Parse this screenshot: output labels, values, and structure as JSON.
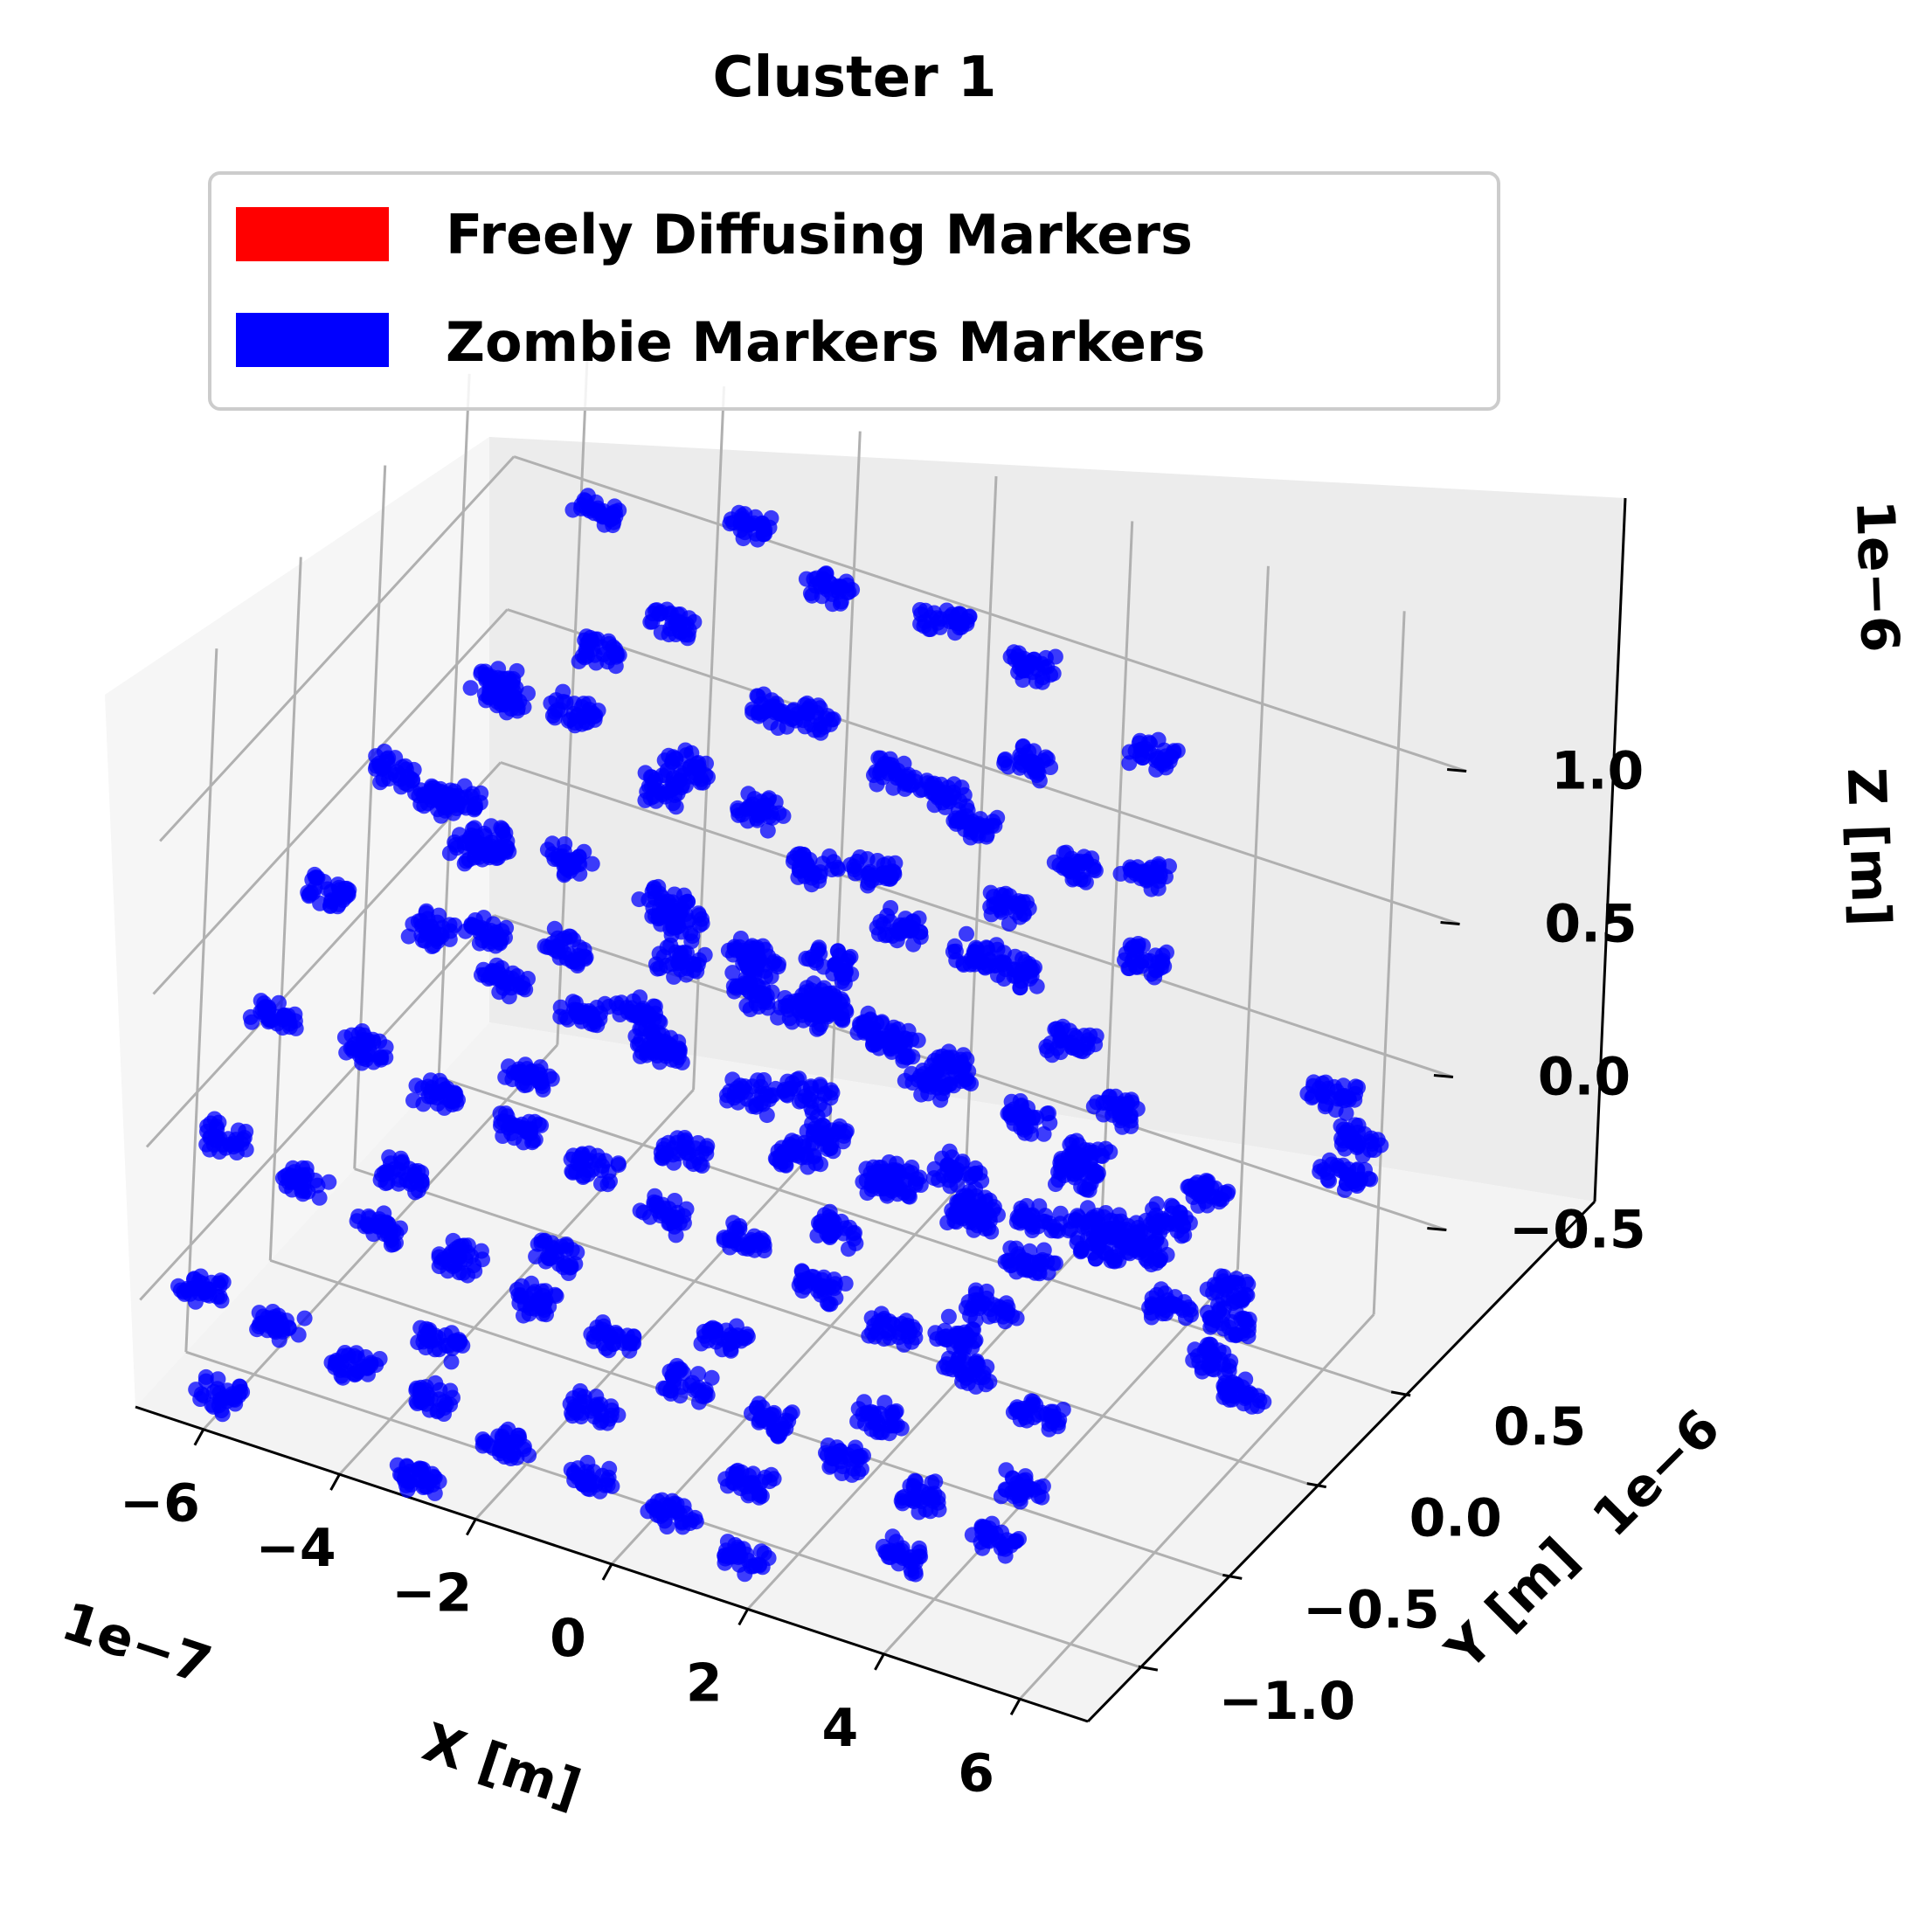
{
  "chart_data": {
    "type": "scatter",
    "projection": "3d",
    "title": "Cluster 1",
    "xlabel": "X [m]",
    "ylabel": "Y [m]",
    "zlabel": "Z [m]",
    "x_offset_text": "1e−7",
    "y_offset_text": "1e−6",
    "z_offset_text": "1e−6",
    "x_ticks": [
      "−6",
      "−4",
      "−2",
      "0",
      "2",
      "4",
      "6"
    ],
    "y_ticks": [
      "−1.0",
      "−0.5",
      "0.0",
      "0.5"
    ],
    "z_ticks": [
      "−0.5",
      "0.0",
      "0.5",
      "1.0"
    ],
    "xlim": [
      -7e-07,
      7e-07
    ],
    "ylim": [
      -1.3e-06,
      8e-07
    ],
    "zlim": [
      -8.5e-07,
      1.45e-06
    ],
    "grid": true,
    "legend_position": "top-center",
    "legend": [
      {
        "label": "Freely Diffusing Markers",
        "color": "#ff0000"
      },
      {
        "label": "Zombie Markers Markers",
        "color": "#0000ff"
      }
    ],
    "series": [
      {
        "name": "Zombie Markers Markers",
        "color": "#0000ff",
        "cluster_count": 140,
        "spread": [
          3e-08,
          4e-08,
          3e-08
        ],
        "cluster_centers": [
          [
            -4.8e-07,
            3.8e-07,
            1.24e-06
          ],
          [
            -2.6e-07,
            4.2e-07,
            1.32e-06
          ],
          [
            -1.2e-07,
            3e-07,
            1.3e-06
          ],
          [
            4e-08,
            3.5e-07,
            1.28e-06
          ],
          [
            1.8e-07,
            3e-07,
            1.26e-06
          ],
          [
            2.6e-07,
            -5e-08,
            1.22e-06
          ],
          [
            3.6e-07,
            3e-07,
            1.1e-06
          ],
          [
            5e-07,
            -3e-07,
            1.18e-06
          ],
          [
            5.6e-07,
            -8.5e-07,
            6.2e-07
          ],
          [
            5.8e-07,
            -9e-07,
            4.5e-07
          ],
          [
            -3.2e-07,
            2e-07,
            1.1e-06
          ],
          [
            -8e-08,
            5e-08,
            1.05e-06
          ],
          [
            6e-08,
            0.0,
            1e-06
          ],
          [
            2e-07,
            -1e-07,
            1e-06
          ],
          [
            3e-07,
            -3e-07,
            9.2e-07
          ],
          [
            -5e-07,
            -1e-07,
            9.5e-07
          ],
          [
            -4e-07,
            -5e-08,
            9e-07
          ],
          [
            -2.2e-07,
            -1e-07,
            8.8e-07
          ],
          [
            -1e-07,
            -1.5e-07,
            8.5e-07
          ],
          [
            8e-08,
            -2e-07,
            8.2e-07
          ],
          [
            1.6e-07,
            -3.5e-07,
            7.8e-07
          ],
          [
            3.4e-07,
            -4e-07,
            8e-07
          ],
          [
            4.6e-07,
            -5.5e-07,
            7.4e-07
          ],
          [
            5.4e-07,
            -6e-07,
            6.2e-07
          ],
          [
            -6e-07,
            -3e-07,
            7e-07
          ],
          [
            -5.5e-07,
            -2.5e-07,
            6.2e-07
          ],
          [
            -4.6e-07,
            -3e-07,
            5.8e-07
          ],
          [
            -3.4e-07,
            -3e-07,
            6e-07
          ],
          [
            -2e-07,
            -3e-07,
            5.6e-07
          ],
          [
            -6e-08,
            -3.5e-07,
            5.4e-07
          ],
          [
            6e-08,
            -4e-07,
            5e-07
          ],
          [
            1.8e-07,
            -4.5e-07,
            4.8e-07
          ],
          [
            2.8e-07,
            -5e-07,
            5e-07
          ],
          [
            4e-07,
            -5.5e-07,
            4.5e-07
          ],
          [
            5e-07,
            -6.5e-07,
            4e-07
          ],
          [
            -6.4e-07,
            -5e-07,
            4e-07
          ],
          [
            -5e-07,
            -4.5e-07,
            3.5e-07
          ],
          [
            -3.8e-07,
            -5e-07,
            3e-07
          ],
          [
            -2.6e-07,
            -5e-07,
            2.8e-07
          ],
          [
            -1.4e-07,
            -5e-07,
            2.6e-07
          ],
          [
            0.0,
            -5.5e-07,
            2.4e-07
          ],
          [
            1.2e-07,
            -6e-07,
            2.2e-07
          ],
          [
            2.4e-07,
            -6.5e-07,
            2e-07
          ],
          [
            3.6e-07,
            -7e-07,
            1.8e-07
          ],
          [
            4.6e-07,
            -7.5e-07,
            1.5e-07
          ],
          [
            -6.6e-07,
            -7e-07,
            1e-07
          ],
          [
            -5.4e-07,
            -6.5e-07,
            5e-08
          ],
          [
            -4.2e-07,
            -7e-07,
            2e-08
          ],
          [
            -3e-07,
            -7e-07,
            0.0
          ],
          [
            -1.8e-07,
            -7.5e-07,
            -2e-08
          ],
          [
            -6e-08,
            -8e-07,
            -5e-08
          ],
          [
            6e-08,
            -8e-07,
            -5e-08
          ],
          [
            1.8e-07,
            -8.5e-07,
            -8e-08
          ],
          [
            3e-07,
            -9e-07,
            -1e-07
          ],
          [
            4.2e-07,
            -9.5e-07,
            -1.2e-07
          ],
          [
            5.4e-07,
            -1e-06,
            -1.4e-07
          ],
          [
            -6.8e-07,
            -9e-07,
            -2e-07
          ],
          [
            -5.6e-07,
            -9e-07,
            -2.5e-07
          ],
          [
            -4.4e-07,
            -9.5e-07,
            -2.8e-07
          ],
          [
            -3.2e-07,
            -9.5e-07,
            -3e-07
          ],
          [
            -2e-07,
            -1e-06,
            -3.2e-07
          ],
          [
            -8e-08,
            -1e-06,
            -3.5e-07
          ],
          [
            4e-08,
            -1.05e-06,
            -3.8e-07
          ],
          [
            1.6e-07,
            -1.05e-06,
            -4e-07
          ],
          [
            2.8e-07,
            -1.1e-06,
            -4.2e-07
          ],
          [
            4e-07,
            -1.1e-06,
            -4.5e-07
          ],
          [
            5.2e-07,
            -1.15e-06,
            -4.8e-07
          ],
          [
            -6.6e-07,
            -1.1e-06,
            -5.5e-07
          ],
          [
            -5.4e-07,
            -1.1e-06,
            -5.8e-07
          ],
          [
            -4.2e-07,
            -1.15e-06,
            -6e-07
          ],
          [
            -3e-07,
            -1.15e-06,
            -6.2e-07
          ],
          [
            -1.8e-07,
            -1.2e-06,
            -6.5e-07
          ],
          [
            -6e-08,
            -1.2e-06,
            -6.8e-07
          ],
          [
            6e-08,
            -1.2e-06,
            -7e-07
          ],
          [
            1.8e-07,
            -1.25e-06,
            -7.2e-07
          ],
          [
            -4e-07,
            1e-07,
            1e-06
          ],
          [
            -1.6e-07,
            1.5e-07,
            9.5e-07
          ],
          [
            1e-07,
            1e-07,
            9e-07
          ],
          [
            3.2e-07,
            5e-08,
            8.5e-07
          ],
          [
            4.4e-07,
            -5e-08,
            7e-07
          ],
          [
            -2.8e-07,
            0.0,
            7e-07
          ],
          [
            -4e-08,
            -5e-08,
            6.5e-07
          ],
          [
            2.2e-07,
            -1.5e-07,
            6.2e-07
          ],
          [
            -4.8e-07,
            -2e-07,
            2e-07
          ],
          [
            -2.4e-07,
            -2.5e-07,
            1.5e-07
          ],
          [
            2e-08,
            -3e-07,
            1e-07
          ],
          [
            2.6e-07,
            -3.5e-07,
            5e-08
          ],
          [
            4.8e-07,
            -4e-07,
            0.0
          ],
          [
            -3.6e-07,
            -4e-07,
            -5e-08
          ],
          [
            -1.2e-07,
            -4.5e-07,
            -1e-07
          ],
          [
            1.2e-07,
            -5e-07,
            -1.5e-07
          ],
          [
            3.6e-07,
            -5.5e-07,
            -2e-07
          ],
          [
            -5e-07,
            -5.5e-07,
            -4e-07
          ],
          [
            -2.6e-07,
            -6e-07,
            -4.5e-07
          ],
          [
            0.0,
            -6.5e-07,
            -5e-07
          ],
          [
            2.4e-07,
            -7e-07,
            -5.5e-07
          ],
          [
            4.6e-07,
            -7.5e-07,
            -6e-07
          ],
          [
            -3.8e-07,
            -8e-07,
            -7e-07
          ],
          [
            -1.4e-07,
            -8.5e-07,
            -7.2e-07
          ],
          [
            1e-07,
            -9e-07,
            -7.5e-07
          ],
          [
            3.4e-07,
            -9.5e-07,
            -7.8e-07
          ],
          [
            5.6e-07,
            -3e-07,
            -2e-07
          ],
          [
            6e-07,
            -2e-07,
            -4e-07
          ],
          [
            6.2e-07,
            -1e-07,
            -5.5e-07
          ],
          [
            5.8e-07,
            0.0,
            -3e-07
          ],
          [
            5.2e-07,
            1e-07,
            -1e-07
          ],
          [
            4.4e-07,
            2e-07,
            -3e-07
          ],
          [
            3.8e-07,
            3e-07,
            -5e-07
          ],
          [
            2e-07,
            4e-07,
            -6e-07
          ],
          [
            8e-08,
            5e-07,
            -7e-07
          ],
          [
            -6e-08,
            5.5e-07,
            -7.5e-07
          ],
          [
            -2e-07,
            6e-07,
            -8e-07
          ],
          [
            6.4e-07,
            3e-07,
            2e-07
          ],
          [
            6.6e-07,
            4e-07,
            0.0
          ],
          [
            6.2e-07,
            5e-07,
            -2e-07
          ],
          [
            -5.8e-07,
            3e-07,
            6e-07
          ],
          [
            -6.2e-07,
            2e-07,
            3e-07
          ],
          [
            -6.4e-07,
            4e-07,
            0.0
          ],
          [
            -5.2e-07,
            5e-07,
            -3e-07
          ],
          [
            -4e-07,
            5.5e-07,
            -5.5e-07
          ],
          [
            0.0,
            -1e-07,
            4e-07
          ],
          [
            1e-07,
            -2e-07,
            3e-07
          ],
          [
            -1e-07,
            -1.5e-07,
            3.5e-07
          ],
          [
            4e-08,
            -3e-07,
            4e-07
          ],
          [
            -4e-08,
            -4e-07,
            4.5e-07
          ],
          [
            2.2e-07,
            -4e-07,
            3.5e-07
          ],
          [
            -2e-07,
            -2e-07,
            4.5e-07
          ],
          [
            8e-08,
            -6e-07,
            6e-07
          ],
          [
            -8e-08,
            -7e-07,
            7e-07
          ],
          [
            1.4e-07,
            2e-07,
            -9e-07
          ],
          [
            4.6e-07,
            5e-07,
            -8e-07
          ],
          [
            -6e-07,
            -1.2e-06,
            -8e-07
          ],
          [
            -3e-07,
            -1.25e-06,
            -8.2e-07
          ],
          [
            2.8e-07,
            6e-07,
            -7e-07
          ]
        ]
      }
    ]
  }
}
